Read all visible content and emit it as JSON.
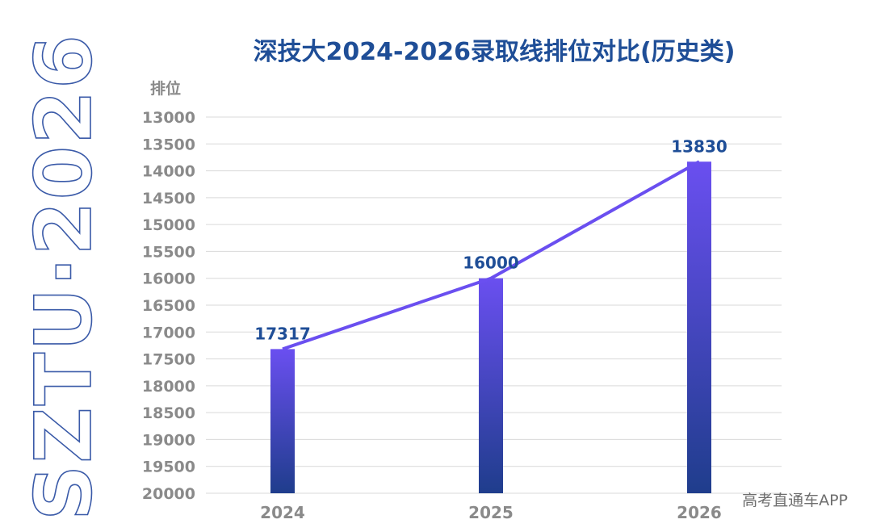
{
  "logo_text": "SZTU·2026",
  "watermark": "高考直通车APP",
  "colors": {
    "title": "#1f4e97",
    "axis_text": "#8a8a8a",
    "grid": "#d9d9d9",
    "bar_top": "#6a4ff0",
    "bar_bottom": "#1f3d8c",
    "line": "#6a4ff0",
    "logo_stroke": "#3a5aa8"
  },
  "chart_data": {
    "type": "bar",
    "title": "深技大2024-2026录取线排位对比(历史类)",
    "ylabel": "排位",
    "xlabel": "",
    "categories": [
      "2024",
      "2025",
      "2026"
    ],
    "values": [
      17317,
      16000,
      13830
    ],
    "data_labels": [
      "17317",
      "16000",
      "13830"
    ],
    "ylim": [
      13000,
      20000
    ],
    "y_inverted": true,
    "yticks": [
      "13000",
      "13500",
      "14000",
      "14500",
      "15000",
      "15500",
      "16000",
      "16500",
      "17000",
      "17500",
      "18000",
      "18500",
      "19000",
      "19500",
      "20000"
    ],
    "grid": true,
    "overlay_line": true
  }
}
